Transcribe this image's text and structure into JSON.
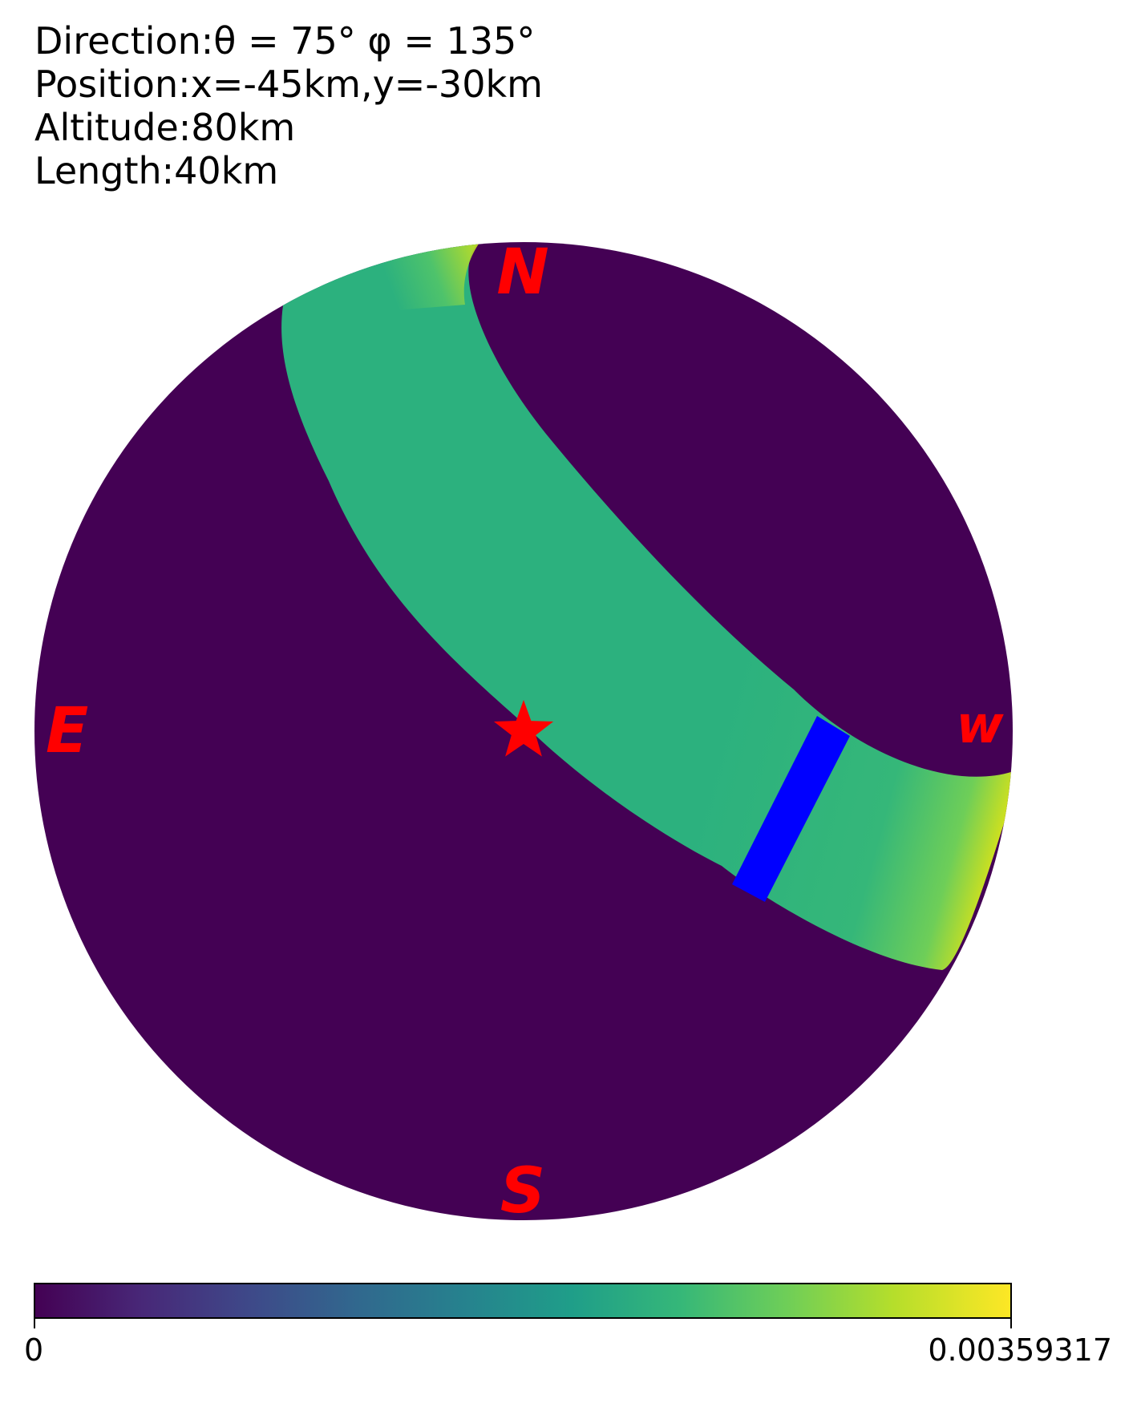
{
  "header": {
    "direction": "Direction:θ = 75° φ = 135°",
    "position": "Position:x=-45km,y=-30km",
    "altitude": "Altitude:80km",
    "length": "Length:40km"
  },
  "chart_data": {
    "type": "heatmap",
    "projection": "all-sky disk (zenith at center)",
    "compass_labels": {
      "north": "N",
      "south": "S",
      "east": "E",
      "west": "w"
    },
    "marker": {
      "symbol": "star",
      "meaning": "zenith",
      "color": "#ff0000"
    },
    "band": {
      "description": "emission band from upper-left to right edge",
      "value_typical": 0.0021,
      "value_edge_max": 0.00359317
    },
    "highlight_segment": {
      "color": "#0000ff"
    },
    "background_value": 0,
    "colorbar": {
      "colormap": "viridis",
      "min_label": "0",
      "max_label": "0.00359317",
      "min": 0,
      "max": 0.00359317
    },
    "colors": {
      "low": "#440154",
      "band": "#2cb17e",
      "high": "#fde725",
      "label": "#ff0000",
      "segment": "#0000ff"
    }
  }
}
